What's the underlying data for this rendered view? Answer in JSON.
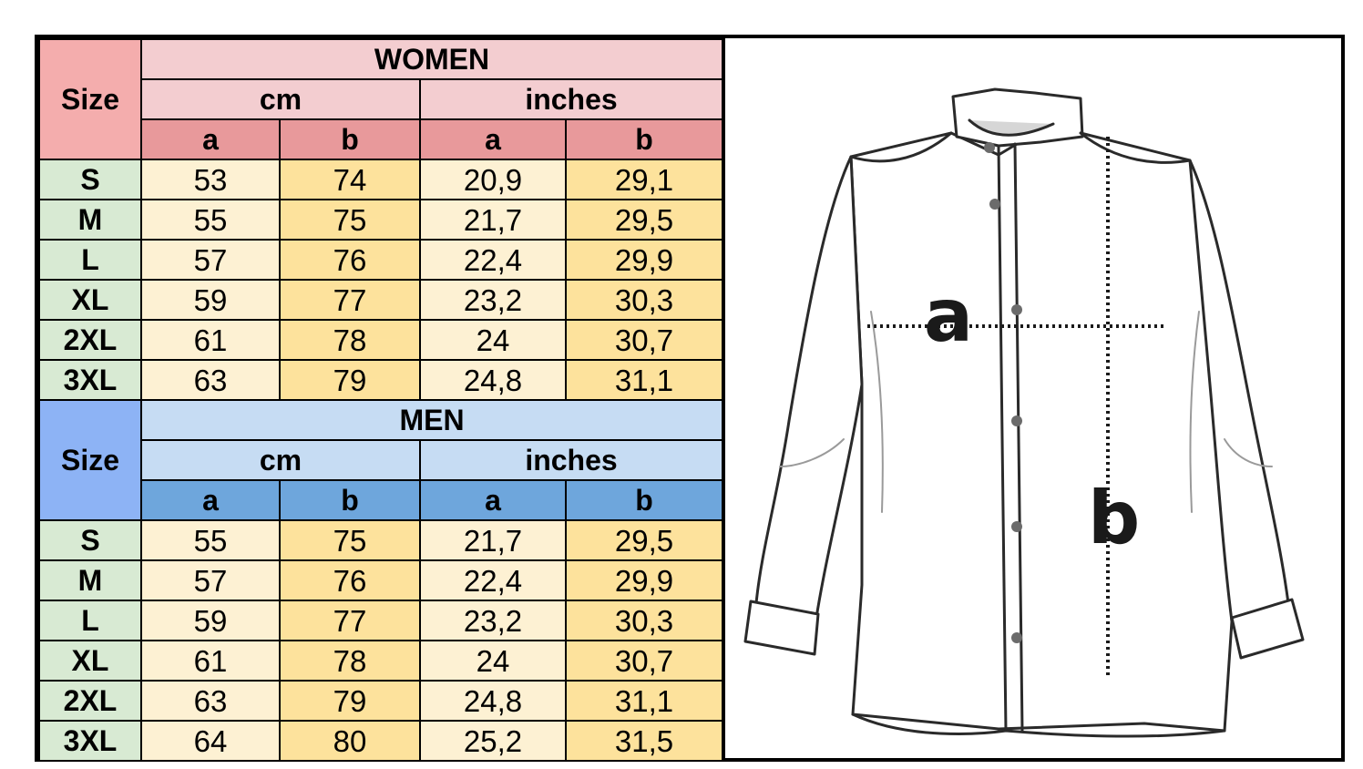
{
  "colors": {
    "women_size": "#f4adad",
    "women_header": "#f3cdd0",
    "women_sub": "#e8999b",
    "men_size": "#8db3f5",
    "men_header": "#c6dcf3",
    "men_sub": "#6ea6dc",
    "size_label": "#d8ead3",
    "light_col": "#fdf1d3",
    "dark_col": "#fde29c"
  },
  "size_header": "Size",
  "women": {
    "title": "WOMEN",
    "cm": "cm",
    "inches": "inches",
    "cols": [
      "a",
      "b",
      "a",
      "b"
    ],
    "rows": [
      {
        "size": "S",
        "vals": [
          "53",
          "74",
          "20,9",
          "29,1"
        ]
      },
      {
        "size": "M",
        "vals": [
          "55",
          "75",
          "21,7",
          "29,5"
        ]
      },
      {
        "size": "L",
        "vals": [
          "57",
          "76",
          "22,4",
          "29,9"
        ]
      },
      {
        "size": "XL",
        "vals": [
          "59",
          "77",
          "23,2",
          "30,3"
        ]
      },
      {
        "size": "2XL",
        "vals": [
          "61",
          "78",
          "24",
          "30,7"
        ]
      },
      {
        "size": "3XL",
        "vals": [
          "63",
          "79",
          "24,8",
          "31,1"
        ]
      }
    ]
  },
  "men": {
    "title": "MEN",
    "cm": "cm",
    "inches": "inches",
    "cols": [
      "a",
      "b",
      "a",
      "b"
    ],
    "rows": [
      {
        "size": "S",
        "vals": [
          "55",
          "75",
          "21,7",
          "29,5"
        ]
      },
      {
        "size": "M",
        "vals": [
          "57",
          "76",
          "22,4",
          "29,9"
        ]
      },
      {
        "size": "L",
        "vals": [
          "59",
          "77",
          "23,2",
          "30,3"
        ]
      },
      {
        "size": "XL",
        "vals": [
          "61",
          "78",
          "24",
          "30,7"
        ]
      },
      {
        "size": "2XL",
        "vals": [
          "63",
          "79",
          "24,8",
          "31,1"
        ]
      },
      {
        "size": "3XL",
        "vals": [
          "64",
          "80",
          "25,2",
          "31,5"
        ]
      }
    ]
  },
  "diagram": {
    "label_a": "a",
    "label_b": "b"
  }
}
